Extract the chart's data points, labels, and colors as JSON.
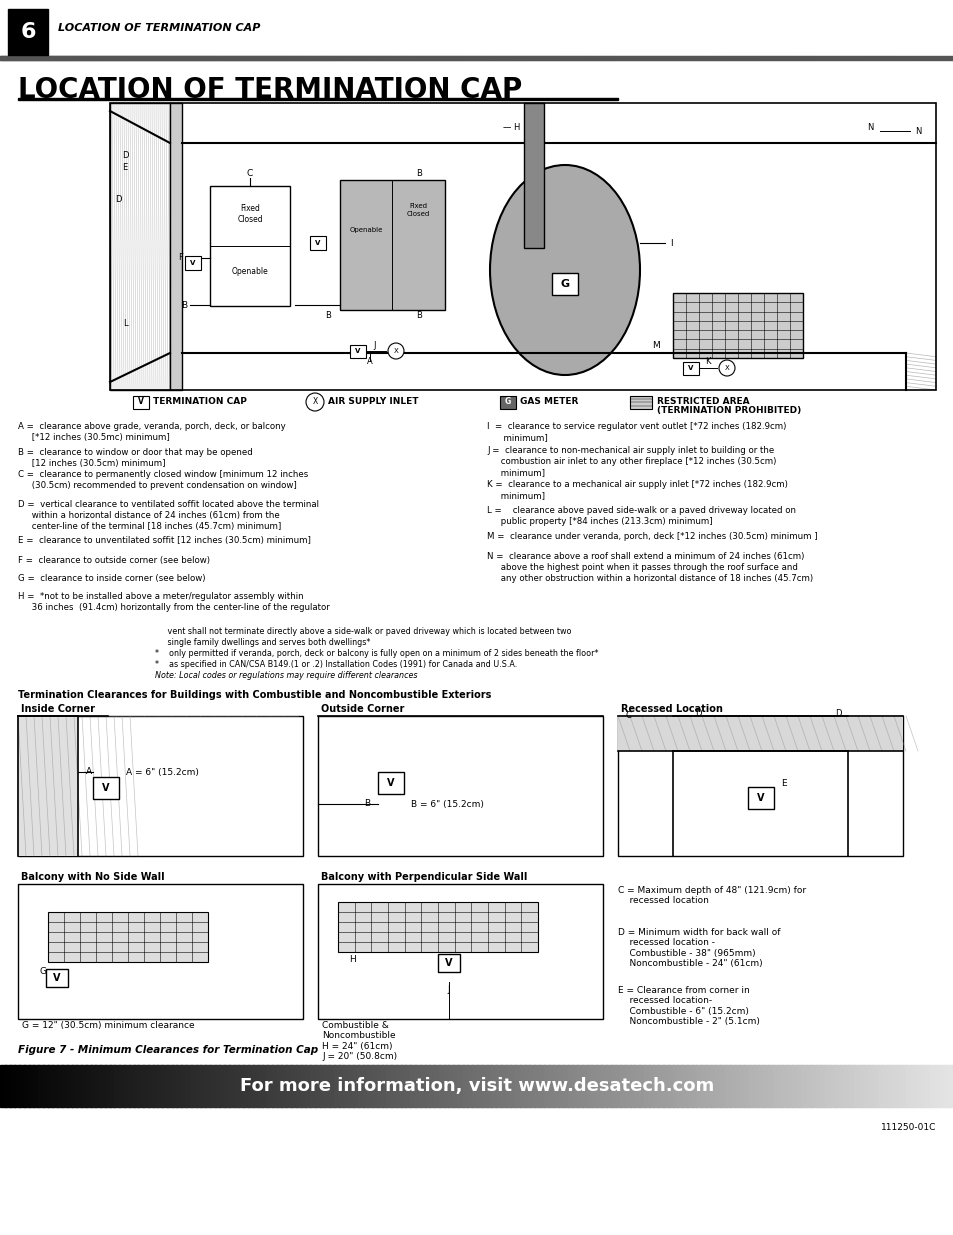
{
  "page_number": "6",
  "header_text": "LOCATION OF TERMINATION CAP",
  "title_text": "LOCATION OF TERMINATION CAP",
  "footer_text": "For more information, visit www.desatech.com",
  "footer_doc_num": "111250-01C",
  "figure_caption": "Figure 7 - Minimum Clearances for Termination Cap",
  "clearances_left": [
    "A =  clearance above grade, veranda, porch, deck, or balcony\n     [*12 inches (30.5mc) minimum]",
    "B =  clearance to window or door that may be opened\n     [12 inches (30.5cm) minimum]",
    "C =  clearance to permanently closed window [minimum 12 inches\n     (30.5cm) recommended to prevent condensation on window]",
    "D =  vertical clearance to ventilated soffit located above the terminal\n     within a horizontal distance of 24 inches (61cm) from the\n     center-line of the terminal [18 inches (45.7cm) minimum]",
    "E =  clearance to unventilated soffit [12 inches (30.5cm) minimum]",
    "F =  clearance to outside corner (see below)",
    "G =  clearance to inside corner (see below)",
    "H =  *not to be installed above a meter/regulator assembly within\n     36 inches  (91.4cm) horizontally from the center-line of the regulator"
  ],
  "clearances_right": [
    "I  =  clearance to service regulator vent outlet [*72 inches (182.9cm)\n      minimum]",
    "J =  clearance to non-mechanical air supply inlet to building or the\n     combustion air inlet to any other fireplace [*12 inches (30.5cm)\n     minimum]",
    "K =  clearance to a mechanical air supply inlet [*72 inches (182.9cm)\n     minimum]",
    "L =    clearance above paved side-walk or a paved driveway located on\n     public property [*84 inches (213.3cm) minimum]",
    "M =  clearance under veranda, porch, deck [*12 inches (30.5cm) minimum ]",
    "N =  clearance above a roof shall extend a minimum of 24 inches (61cm)\n     above the highest point when it passes through the roof surface and\n     any other obstruction within a horizontal distance of 18 inches (45.7cm)"
  ],
  "footnotes": [
    "     vent shall not terminate directly above a side-walk or paved driveway which is located between two",
    "     single family dwellings and serves both dwellings*",
    "*    only permitted if veranda, porch, deck or balcony is fully open on a minimum of 2 sides beneath the floor*",
    "*    as specified in CAN/CSA B149.(1 or .2) Installation Codes (1991) for Canada and U.S.A.",
    "Note: Local codes or regulations may require different clearances"
  ],
  "termination_section_title": "Termination Clearances for Buildings with Combustible and Noncombustible Exteriors",
  "inside_corner_label": "Inside Corner",
  "outside_corner_label": "Outside Corner",
  "recessed_location_label": "Recessed Location",
  "balcony_no_side_label": "Balcony with No Side Wall",
  "balcony_perp_label": "Balcony with Perpendicular Side Wall",
  "inside_corner_dim": "A = 6\" (15.2cm)",
  "outside_corner_dim": "B = 6\" (15.2cm)",
  "balcony_g_dim": "G = 12\" (30.5cm) minimum clearance",
  "balcony_h_dim": "H = 24\" (61cm)",
  "balcony_j_dim": "J = 20\" (50.8cm)",
  "recessed_c": "C = Maximum depth of 48\" (121.9cm) for\n    recessed location",
  "recessed_d": "D = Minimum width for back wall of\n    recessed location -\n    Combustible - 38\" (965mm)\n    Noncombustible - 24\" (61cm)",
  "recessed_e": "E = Clearance from corner in\n    recessed location-\n    Combustible - 6\" (15.2cm)\n    Noncombustible - 2\" (5.1cm)",
  "bg_color": "#ffffff"
}
